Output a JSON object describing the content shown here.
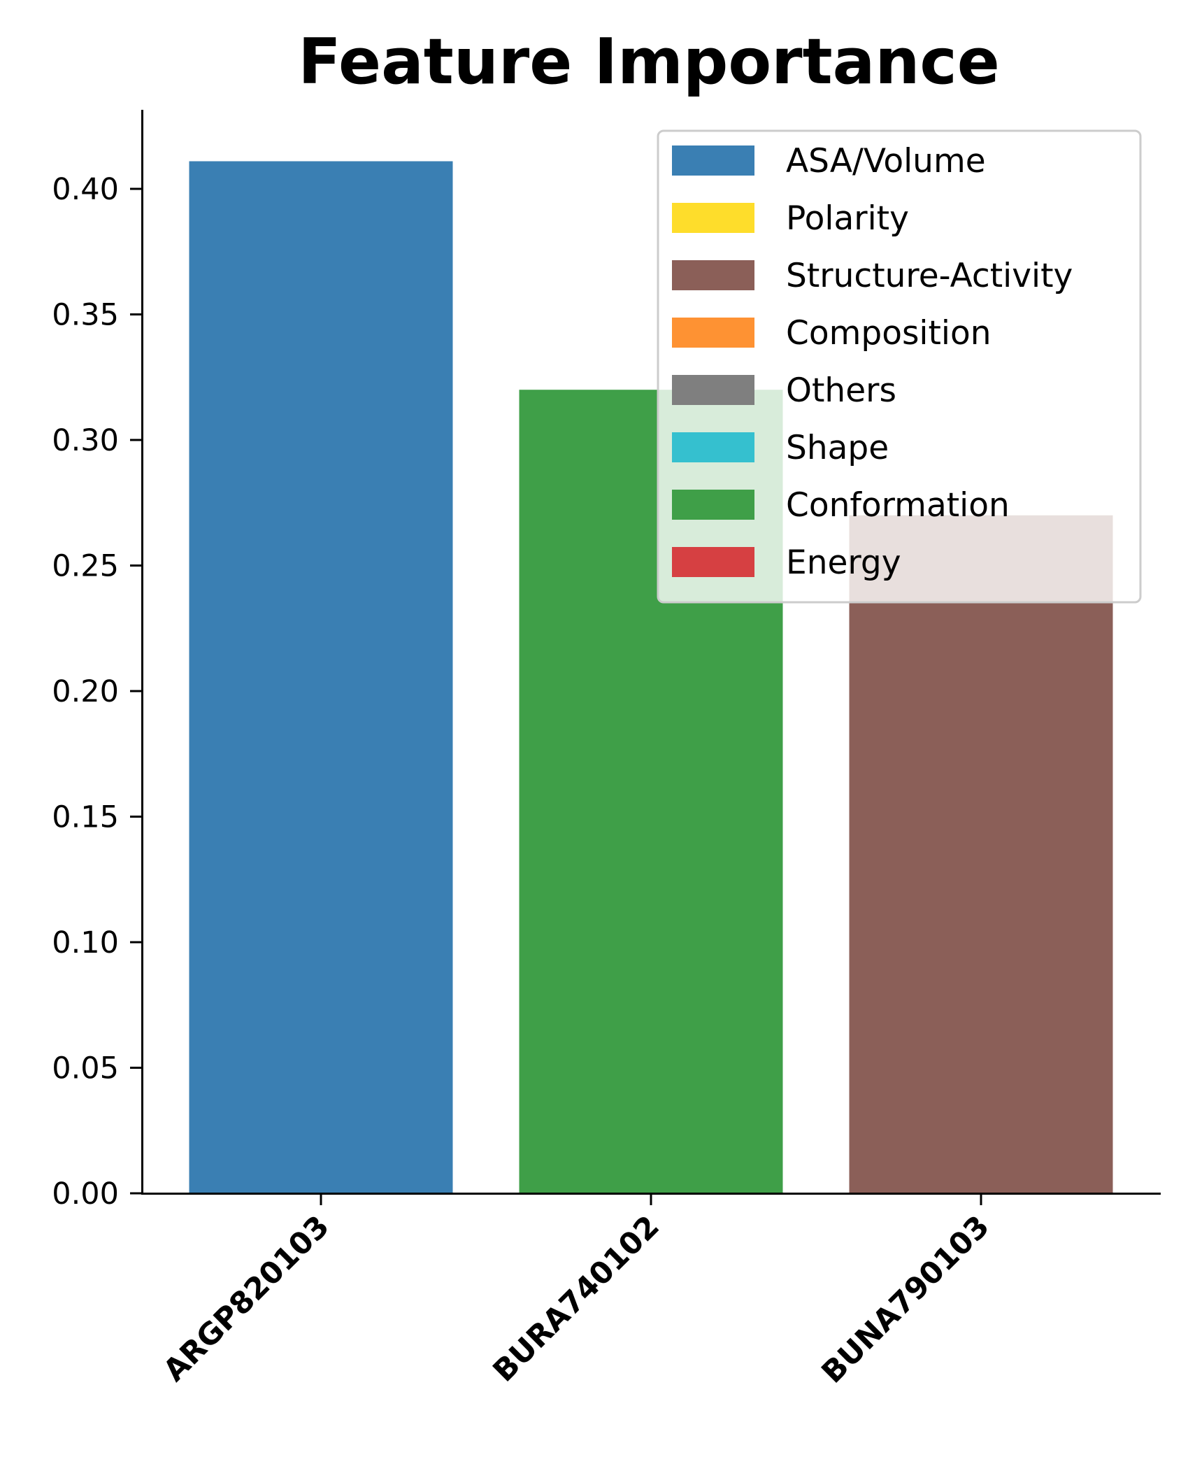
{
  "chart_data": {
    "type": "bar",
    "title": "Feature Importance",
    "xlabel": "",
    "ylabel": "",
    "categories": [
      "ARGP820103",
      "BURA740102",
      "BUNA790103"
    ],
    "values": [
      0.411,
      0.32,
      0.27
    ],
    "bar_colors": [
      "#3a7fb3",
      "#3f9f48",
      "#8b5f58"
    ],
    "ylim": [
      0,
      0.43
    ],
    "yticks": [
      0.0,
      0.05,
      0.1,
      0.15,
      0.2,
      0.25,
      0.3,
      0.35,
      0.4
    ],
    "ytick_labels": [
      "0.00",
      "0.05",
      "0.10",
      "0.15",
      "0.20",
      "0.25",
      "0.30",
      "0.35",
      "0.40"
    ],
    "grid": false,
    "legend_position": "top-right",
    "legend": [
      {
        "label": "ASA/Volume",
        "color": "#3a7fb3"
      },
      {
        "label": "Polarity",
        "color": "#fedd2b"
      },
      {
        "label": "Structure-Activity",
        "color": "#8b5f58"
      },
      {
        "label": "Composition",
        "color": "#fe9233"
      },
      {
        "label": "Others",
        "color": "#7f7f7f"
      },
      {
        "label": "Shape",
        "color": "#35c0cf"
      },
      {
        "label": "Conformation",
        "color": "#3f9f48"
      },
      {
        "label": "Energy",
        "color": "#d64042"
      }
    ]
  }
}
